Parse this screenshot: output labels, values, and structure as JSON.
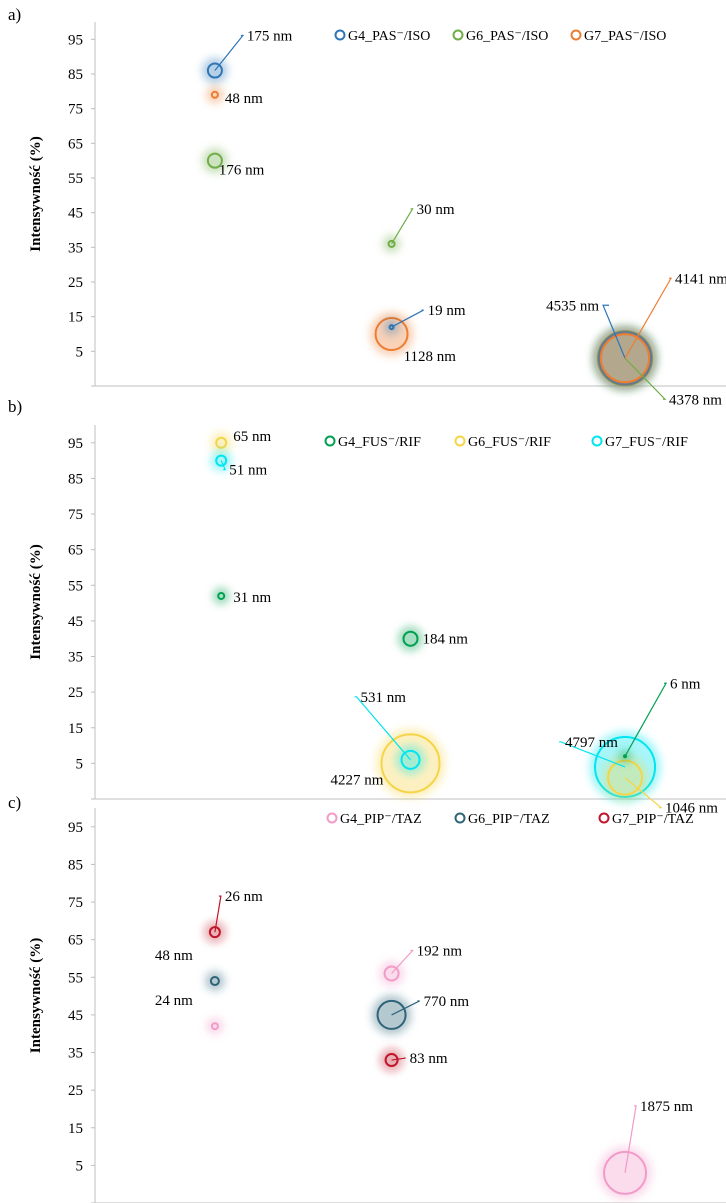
{
  "chart_data": [
    {
      "panel_label": "a)",
      "type": "bubble",
      "ylabel": "Intensywność (%)",
      "yticks": [
        5,
        15,
        25,
        35,
        45,
        55,
        65,
        75,
        85,
        95
      ],
      "ylim": [
        -5,
        100
      ],
      "xlim": [
        0,
        100
      ],
      "legend_position": "top-right",
      "series": [
        {
          "name": "G4_PAS⁻/ISO",
          "color": "#2e75b6",
          "points": [
            {
              "x": 19,
              "y": 86,
              "label": "175 nm",
              "r": 7
            },
            {
              "x": 47,
              "y": 12,
              "label": "19 nm",
              "r": 2
            },
            {
              "x": 84,
              "y": 3,
              "label": "4535 nm",
              "r": 26
            }
          ]
        },
        {
          "name": "G6_PAS⁻/ISO",
          "color": "#70ad47",
          "points": [
            {
              "x": 19,
              "y": 60,
              "label": "176 nm",
              "r": 7
            },
            {
              "x": 47,
              "y": 36,
              "label": "30 nm",
              "r": 3
            },
            {
              "x": 84,
              "y": 3,
              "label": "4378 nm",
              "r": 27
            }
          ]
        },
        {
          "name": "G7_PAS⁻/ISO",
          "color": "#ed7d31",
          "points": [
            {
              "x": 19,
              "y": 79,
              "label": "48 nm",
              "r": 3
            },
            {
              "x": 47,
              "y": 10,
              "label": "1128 nm",
              "r": 16
            },
            {
              "x": 84,
              "y": 3,
              "label": "4141 nm",
              "r": 24
            }
          ]
        }
      ]
    },
    {
      "panel_label": "b)",
      "type": "bubble",
      "ylabel": "Intensywność (%)",
      "yticks": [
        5,
        15,
        25,
        35,
        45,
        55,
        65,
        75,
        85,
        95
      ],
      "ylim": [
        -5,
        100
      ],
      "xlim": [
        0,
        100
      ],
      "legend_position": "top-right",
      "series": [
        {
          "name": "G4_FUS⁻/RIF",
          "color": "#00a050",
          "points": [
            {
              "x": 20,
              "y": 52,
              "label": "31 nm",
              "r": 3
            },
            {
              "x": 50,
              "y": 40,
              "label": "184 nm",
              "r": 7
            },
            {
              "x": 84,
              "y": 7,
              "label": "6 nm",
              "r": 1
            }
          ]
        },
        {
          "name": "G6_FUS⁻/RIF",
          "color": "#f5d547",
          "points": [
            {
              "x": 20,
              "y": 95,
              "label": "65 nm",
              "r": 5
            },
            {
              "x": 50,
              "y": 5,
              "label": "4227 nm",
              "r": 29
            },
            {
              "x": 84,
              "y": 1,
              "label": "1046 nm",
              "r": 17
            }
          ]
        },
        {
          "name": "G7_FUS⁻/RIF",
          "color": "#00e5f0",
          "points": [
            {
              "x": 20,
              "y": 90,
              "label": "51 nm",
              "r": 5
            },
            {
              "x": 50,
              "y": 6,
              "label": "531 nm",
              "r": 9
            },
            {
              "x": 84,
              "y": 4,
              "label": "4797 nm",
              "r": 30
            }
          ]
        }
      ]
    },
    {
      "panel_label": "c)",
      "type": "bubble",
      "ylabel": "Intensywność (%)",
      "yticks": [
        5,
        15,
        25,
        35,
        45,
        55,
        65,
        75,
        85,
        95
      ],
      "ylim": [
        -5,
        100
      ],
      "xlim": [
        0,
        100
      ],
      "legend_position": "top-right",
      "series": [
        {
          "name": "G4_PIP⁻/TAZ",
          "color": "#f29ac8",
          "points": [
            {
              "x": 19,
              "y": 42,
              "label": "24 nm",
              "r": 3
            },
            {
              "x": 47,
              "y": 56,
              "label": "192 nm",
              "r": 7
            },
            {
              "x": 84,
              "y": 3,
              "label": "1875 nm",
              "r": 21
            }
          ]
        },
        {
          "name": "G6_PIP⁻/TAZ",
          "color": "#2f6478",
          "points": [
            {
              "x": 19,
              "y": 54,
              "label": "48 nm",
              "r": 4
            },
            {
              "x": 47,
              "y": 45,
              "label": "770 nm",
              "r": 14
            }
          ]
        },
        {
          "name": "G7_PIP⁻/TAZ",
          "color": "#c0152a",
          "points": [
            {
              "x": 19,
              "y": 67,
              "label": "26 nm",
              "r": 5
            },
            {
              "x": 47,
              "y": 33,
              "label": "83 nm",
              "r": 6
            }
          ]
        }
      ]
    }
  ]
}
